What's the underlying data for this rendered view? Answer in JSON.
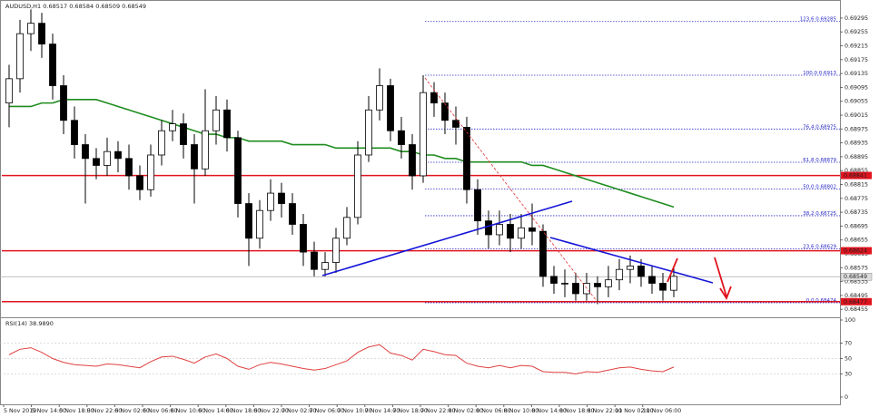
{
  "chart_data": {
    "type": "candlestick",
    "header": {
      "symbol": "AUDUSD,H1",
      "open": 0.68517,
      "high": 0.68584,
      "low": 0.68509,
      "close": 0.68549
    },
    "x_labels": [
      "5 Nov 2019",
      "5 Nov 14:00",
      "5 Nov 18:00",
      "5 Nov 22:00",
      "6 Nov 02:00",
      "6 Nov 06:00",
      "6 Nov 10:00",
      "6 Nov 14:00",
      "6 Nov 18:00",
      "6 Nov 22:00",
      "7 Nov 02:00",
      "7 Nov 06:00",
      "7 Nov 10:00",
      "7 Nov 14:00",
      "7 Nov 18:00",
      "7 Nov 22:00",
      "8 Nov 02:00",
      "8 Nov 06:00",
      "8 Nov 10:00",
      "8 Nov 14:00",
      "8 Nov 18:00",
      "8 Nov 22:00",
      "11 Nov 02:00",
      "11 Nov 06:00"
    ],
    "ylim": [
      0.68432,
      0.69334
    ],
    "yticks": [
      0.69295,
      0.69255,
      0.69215,
      0.69175,
      0.69135,
      0.69095,
      0.69055,
      0.69015,
      0.68975,
      0.68935,
      0.68895,
      0.68855,
      0.68815,
      0.68775,
      0.68735,
      0.68695,
      0.68655,
      0.68615,
      0.68575,
      0.68535,
      0.68495,
      0.68455
    ],
    "candles": {
      "open": [
        0.6905,
        0.6912,
        0.6925,
        0.6928,
        0.6922,
        0.691,
        0.69,
        0.6893,
        0.6889,
        0.6887,
        0.6891,
        0.6889,
        0.6884,
        0.688,
        0.689,
        0.6897,
        0.6899,
        0.6893,
        0.6886,
        0.6897,
        0.6903,
        0.6895,
        0.6876,
        0.6866,
        0.6874,
        0.6879,
        0.6876,
        0.687,
        0.6862,
        0.6857,
        0.6859,
        0.6866,
        0.6872,
        0.689,
        0.6903,
        0.691,
        0.6897,
        0.6893,
        0.6884,
        0.6908,
        0.6905,
        0.69,
        0.6898,
        0.688,
        0.6871,
        0.6867,
        0.687,
        0.6866,
        0.6869,
        0.6868,
        0.6855,
        0.6853,
        0.6853,
        0.685,
        0.6853,
        0.6852,
        0.6854,
        0.6857,
        0.6858,
        0.6855,
        0.6853,
        0.6851
      ],
      "high": [
        0.6916,
        0.6929,
        0.6932,
        0.6931,
        0.6925,
        0.6913,
        0.6904,
        0.6896,
        0.6892,
        0.6895,
        0.6894,
        0.6893,
        0.6887,
        0.6893,
        0.69,
        0.6903,
        0.6902,
        0.6896,
        0.6909,
        0.6907,
        0.6906,
        0.6897,
        0.6879,
        0.6877,
        0.6883,
        0.6882,
        0.6879,
        0.6873,
        0.6865,
        0.6862,
        0.6869,
        0.6875,
        0.6894,
        0.6907,
        0.6915,
        0.6912,
        0.6901,
        0.6896,
        0.6913,
        0.6911,
        0.6908,
        0.6904,
        0.6901,
        0.6883,
        0.6874,
        0.6874,
        0.6873,
        0.6873,
        0.6876,
        0.687,
        0.6858,
        0.6857,
        0.6856,
        0.6856,
        0.6855,
        0.6858,
        0.686,
        0.6861,
        0.686,
        0.6858,
        0.6856,
        0.6858
      ],
      "low": [
        0.6898,
        0.6908,
        0.692,
        0.6918,
        0.6906,
        0.6896,
        0.6889,
        0.6876,
        0.6883,
        0.6884,
        0.6885,
        0.688,
        0.6877,
        0.6878,
        0.6887,
        0.6894,
        0.6889,
        0.6876,
        0.6884,
        0.6893,
        0.6891,
        0.6872,
        0.6858,
        0.6863,
        0.6871,
        0.6872,
        0.6867,
        0.6858,
        0.6855,
        0.6855,
        0.6856,
        0.6864,
        0.687,
        0.6888,
        0.69,
        0.6894,
        0.6889,
        0.688,
        0.6882,
        0.6901,
        0.6896,
        0.6893,
        0.6876,
        0.6867,
        0.6863,
        0.6864,
        0.6862,
        0.6863,
        0.6864,
        0.6852,
        0.685,
        0.6849,
        0.6848,
        0.6848,
        0.6847,
        0.6849,
        0.6851,
        0.6853,
        0.6852,
        0.685,
        0.6848,
        0.6849
      ],
      "close": [
        0.6912,
        0.6925,
        0.6928,
        0.6922,
        0.691,
        0.69,
        0.6893,
        0.6889,
        0.6887,
        0.6891,
        0.6889,
        0.6884,
        0.688,
        0.689,
        0.6897,
        0.6899,
        0.6893,
        0.6886,
        0.6897,
        0.6903,
        0.6895,
        0.6876,
        0.6866,
        0.6874,
        0.6879,
        0.6876,
        0.687,
        0.6862,
        0.6857,
        0.6859,
        0.6866,
        0.6872,
        0.689,
        0.6903,
        0.691,
        0.6897,
        0.6893,
        0.6884,
        0.6908,
        0.6905,
        0.69,
        0.6898,
        0.688,
        0.6871,
        0.6867,
        0.687,
        0.6866,
        0.6869,
        0.6868,
        0.6855,
        0.6853,
        0.6853,
        0.685,
        0.6853,
        0.6852,
        0.6854,
        0.6857,
        0.6858,
        0.6855,
        0.6853,
        0.6851,
        0.6855
      ]
    },
    "ma": {
      "color": "#1e8c1e",
      "values": [
        0.6904,
        0.6904,
        0.6904,
        0.6905,
        0.6905,
        0.6906,
        0.6906,
        0.6906,
        0.6906,
        0.6905,
        0.6904,
        0.6903,
        0.6902,
        0.6901,
        0.69,
        0.6899,
        0.6898,
        0.6897,
        0.6896,
        0.6896,
        0.6895,
        0.6895,
        0.6894,
        0.6894,
        0.6894,
        0.6894,
        0.6893,
        0.6893,
        0.6893,
        0.6893,
        0.6892,
        0.6892,
        0.6892,
        0.6892,
        0.6892,
        0.6892,
        0.6891,
        0.6891,
        0.689,
        0.689,
        0.6889,
        0.6889,
        0.6888,
        0.6888,
        0.6888,
        0.6888,
        0.6888,
        0.6888,
        0.6887,
        0.6887,
        0.6886,
        0.6885,
        0.6884,
        0.6883,
        0.6882,
        0.6881,
        0.688,
        0.6879,
        0.6878,
        0.6877,
        0.6876,
        0.6875
      ]
    },
    "red_levels": [
      0.68841,
      0.68624,
      0.68477
    ],
    "red_color": "#e0141e",
    "current_price": 0.68549,
    "fib": [
      {
        "level": "123.6",
        "price": 0.69285
      },
      {
        "level": "100.0",
        "price": 0.6913
      },
      {
        "level": "76.4",
        "price": 0.68975
      },
      {
        "level": "61.8",
        "price": 0.68879
      },
      {
        "level": "50.0",
        "price": 0.68802
      },
      {
        "level": "38.2",
        "price": 0.68725
      },
      {
        "level": "23.6",
        "price": 0.68629
      },
      {
        "level": "0.0",
        "price": 0.68474
      }
    ],
    "fib_color": "#2828c8",
    "rsi": {
      "name": "RSI(14)",
      "current_label": "38.9890",
      "color": "#e04040",
      "ylim": [
        0,
        100
      ],
      "yticks": [
        100,
        70,
        50,
        30,
        0
      ],
      "values": [
        55,
        62,
        64,
        58,
        50,
        45,
        42,
        41,
        40,
        43,
        42,
        40,
        38,
        46,
        52,
        53,
        49,
        44,
        52,
        56,
        50,
        40,
        36,
        42,
        45,
        43,
        40,
        37,
        35,
        37,
        42,
        47,
        58,
        65,
        68,
        57,
        54,
        48,
        62,
        59,
        55,
        54,
        44,
        40,
        38,
        41,
        38,
        41,
        40,
        33,
        32,
        32,
        30,
        33,
        32,
        35,
        38,
        39,
        36,
        34,
        33,
        38.989
      ]
    }
  }
}
